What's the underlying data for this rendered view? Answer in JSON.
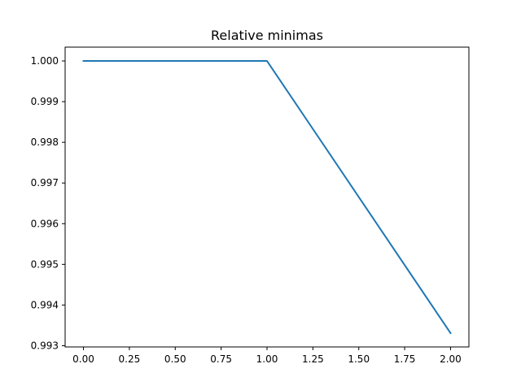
{
  "chart_data": {
    "type": "line",
    "title": "Relative minimas",
    "xlabel": "",
    "ylabel": "",
    "xlim": [
      -0.1,
      2.1
    ],
    "ylim": [
      0.99297,
      1.00034
    ],
    "x_ticks": [
      0.0,
      0.25,
      0.5,
      0.75,
      1.0,
      1.25,
      1.5,
      1.75,
      2.0
    ],
    "x_tick_labels": [
      "0.00",
      "0.25",
      "0.50",
      "0.75",
      "1.00",
      "1.25",
      "1.50",
      "1.75",
      "2.00"
    ],
    "y_ticks": [
      0.993,
      0.994,
      0.995,
      0.996,
      0.997,
      0.998,
      0.999,
      1.0
    ],
    "y_tick_labels": [
      "0.993",
      "0.994",
      "0.995",
      "0.996",
      "0.997",
      "0.998",
      "0.999",
      "1.000"
    ],
    "grid": false,
    "legend": "none",
    "series": [
      {
        "color": "#1f77b4",
        "x": [
          0,
          1,
          2
        ],
        "y": [
          1.0,
          1.0,
          0.99331
        ]
      }
    ]
  }
}
